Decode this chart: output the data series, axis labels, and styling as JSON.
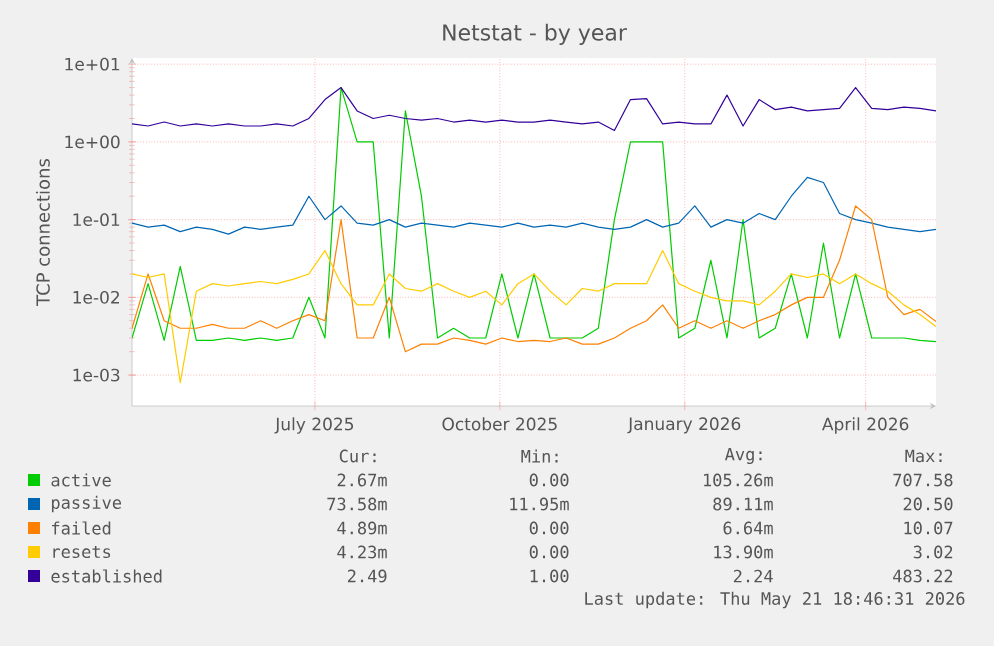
{
  "chart_data": {
    "type": "line",
    "title": "Netstat - by year",
    "ylabel": "TCP connections",
    "log": "y",
    "grid": true,
    "legend": "bottom",
    "xlim": [
      "2025-04-16",
      "2026-05-21"
    ],
    "ylim": [
      0.0004,
      12
    ],
    "xticks": [
      {
        "value": "2025-07-16",
        "label": "July 2025"
      },
      {
        "value": "2025-10-16",
        "label": "October 2025"
      },
      {
        "value": "2026-01-16",
        "label": "January 2026"
      },
      {
        "value": "2026-04-16",
        "label": "April 2026"
      }
    ],
    "yticks": [
      {
        "value": 0.001,
        "label": "1e-03"
      },
      {
        "value": 0.01,
        "label": "1e-02"
      },
      {
        "value": 0.1,
        "label": "1e-01"
      },
      {
        "value": 1,
        "label": "1e+00"
      },
      {
        "value": 10,
        "label": "1e+01"
      }
    ],
    "x": [
      "2025-04-16",
      "2025-04-24",
      "2025-05-02",
      "2025-05-10",
      "2025-05-18",
      "2025-05-26",
      "2025-06-03",
      "2025-06-11",
      "2025-06-19",
      "2025-06-27",
      "2025-07-05",
      "2025-07-13",
      "2025-07-21",
      "2025-07-29",
      "2025-08-06",
      "2025-08-14",
      "2025-08-22",
      "2025-08-30",
      "2025-09-07",
      "2025-09-15",
      "2025-09-23",
      "2025-10-01",
      "2025-10-09",
      "2025-10-17",
      "2025-10-25",
      "2025-11-02",
      "2025-11-10",
      "2025-11-18",
      "2025-11-26",
      "2025-12-04",
      "2025-12-12",
      "2025-12-20",
      "2025-12-28",
      "2026-01-05",
      "2026-01-13",
      "2026-01-21",
      "2026-01-29",
      "2026-02-06",
      "2026-02-14",
      "2026-02-22",
      "2026-03-02",
      "2026-03-10",
      "2026-03-18",
      "2026-03-26",
      "2026-04-03",
      "2026-04-11",
      "2026-04-19",
      "2026-04-27",
      "2026-05-05",
      "2026-05-13",
      "2026-05-21"
    ],
    "series": [
      {
        "name": "active",
        "color": "#00cc00",
        "values": [
          0.003,
          0.015,
          0.0028,
          0.025,
          0.0028,
          0.0028,
          0.003,
          0.0028,
          0.003,
          0.0028,
          0.003,
          0.01,
          0.003,
          5,
          1,
          1,
          0.003,
          2.5,
          0.2,
          0.003,
          0.004,
          0.003,
          0.003,
          0.02,
          0.003,
          0.02,
          0.003,
          0.003,
          0.003,
          0.004,
          0.1,
          1,
          1,
          1,
          0.003,
          0.004,
          0.03,
          0.003,
          0.1,
          0.003,
          0.004,
          0.02,
          0.003,
          0.05,
          0.003,
          0.02,
          0.003,
          0.003,
          0.003,
          0.0028,
          0.0027
        ]
      },
      {
        "name": "passive",
        "color": "#0066b3",
        "values": [
          0.09,
          0.08,
          0.085,
          0.07,
          0.08,
          0.075,
          0.065,
          0.08,
          0.075,
          0.08,
          0.085,
          0.2,
          0.1,
          0.15,
          0.09,
          0.085,
          0.1,
          0.08,
          0.09,
          0.085,
          0.08,
          0.09,
          0.085,
          0.08,
          0.09,
          0.08,
          0.085,
          0.08,
          0.09,
          0.08,
          0.075,
          0.08,
          0.1,
          0.08,
          0.09,
          0.15,
          0.08,
          0.1,
          0.09,
          0.12,
          0.1,
          0.2,
          0.35,
          0.3,
          0.12,
          0.1,
          0.09,
          0.08,
          0.075,
          0.07,
          0.075
        ]
      },
      {
        "name": "failed",
        "color": "#ff8000",
        "values": [
          0.004,
          0.02,
          0.005,
          0.004,
          0.004,
          0.0045,
          0.004,
          0.004,
          0.005,
          0.004,
          0.005,
          0.006,
          0.005,
          0.1,
          0.003,
          0.003,
          0.01,
          0.002,
          0.0025,
          0.0025,
          0.003,
          0.0028,
          0.0025,
          0.003,
          0.0027,
          0.0028,
          0.0027,
          0.003,
          0.0025,
          0.0025,
          0.003,
          0.004,
          0.005,
          0.008,
          0.004,
          0.005,
          0.004,
          0.005,
          0.004,
          0.005,
          0.006,
          0.008,
          0.01,
          0.01,
          0.03,
          0.15,
          0.1,
          0.01,
          0.006,
          0.007,
          0.0049
        ]
      },
      {
        "name": "resets",
        "color": "#ffcc00",
        "values": [
          0.02,
          0.018,
          0.02,
          0.0008,
          0.012,
          0.015,
          0.014,
          0.015,
          0.016,
          0.015,
          0.017,
          0.02,
          0.04,
          0.015,
          0.008,
          0.008,
          0.02,
          0.013,
          0.012,
          0.015,
          0.012,
          0.01,
          0.012,
          0.008,
          0.015,
          0.02,
          0.012,
          0.008,
          0.013,
          0.012,
          0.015,
          0.015,
          0.015,
          0.04,
          0.015,
          0.012,
          0.01,
          0.009,
          0.009,
          0.008,
          0.012,
          0.02,
          0.018,
          0.02,
          0.015,
          0.02,
          0.015,
          0.012,
          0.008,
          0.006,
          0.0042
        ]
      },
      {
        "name": "established",
        "color": "#330099",
        "values": [
          1.7,
          1.6,
          1.8,
          1.6,
          1.7,
          1.6,
          1.7,
          1.6,
          1.6,
          1.7,
          1.6,
          2.0,
          3.5,
          5.0,
          2.5,
          2.0,
          2.2,
          2.0,
          1.9,
          2.0,
          1.8,
          1.9,
          1.8,
          1.9,
          1.8,
          1.8,
          1.9,
          1.8,
          1.7,
          1.8,
          1.4,
          3.5,
          3.6,
          1.7,
          1.8,
          1.7,
          1.7,
          4.0,
          1.6,
          3.5,
          2.6,
          2.8,
          2.5,
          2.6,
          2.7,
          5.0,
          2.7,
          2.6,
          2.8,
          2.7,
          2.5
        ]
      }
    ],
    "annotations": [
      "Cur:",
      "Min:",
      "Avg:",
      "Max:",
      "2.67m",
      "0.00",
      "105.26m",
      "707.58",
      "73.58m",
      "11.95m",
      "89.11m",
      "20.50",
      "4.89m",
      "0.00",
      "6.64m",
      "10.07",
      "4.23m",
      "0.00",
      "13.90m",
      "3.02",
      "2.49",
      "1.00",
      "2.24",
      "483.22",
      "Last update: Thu May 21 18:46:31 2026"
    ]
  }
}
